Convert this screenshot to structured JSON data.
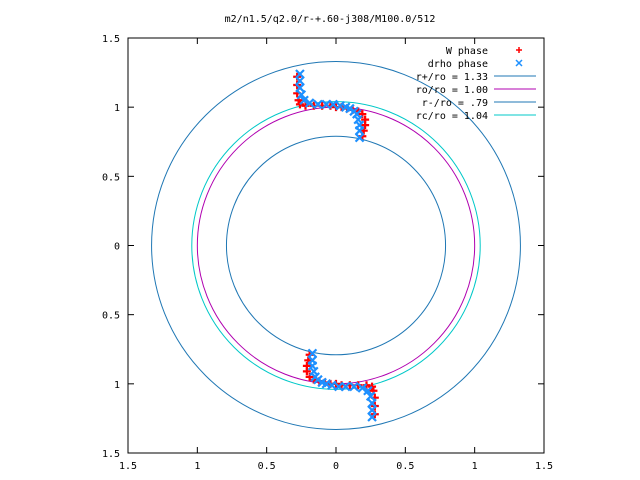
{
  "chart_data": {
    "type": "scatter",
    "title": "m2/n1.5/q2.0/r-+.60-j308/M100.0/512",
    "xlabel": "",
    "ylabel": "",
    "xlim": [
      -1.5,
      1.5
    ],
    "ylim": [
      -1.5,
      1.5
    ],
    "x_ticks": [
      -1.5,
      -1,
      -0.5,
      0,
      0.5,
      1,
      1.5
    ],
    "y_ticks": [
      -1.5,
      -1,
      -0.5,
      0,
      0.5,
      1,
      1.5
    ],
    "x_tick_labels": [
      "1.5",
      "1",
      "0.5",
      "0",
      "0.5",
      "1",
      "1.5"
    ],
    "y_tick_labels": [
      "1.5",
      "1",
      "0.5",
      "0",
      "0.5",
      "1",
      "1.5"
    ],
    "grid": false,
    "legend_position": "top-right",
    "circles": [
      {
        "label": "r+/ro = 1.33",
        "radius": 1.33,
        "color": "#1f77b4"
      },
      {
        "label": "ro/ro = 1.00",
        "radius": 1.0,
        "color": "#b000b0"
      },
      {
        "label": "r-/ro = .79",
        "radius": 0.79,
        "color": "#1f77b4"
      },
      {
        "label": "rc/ro = 1.04",
        "radius": 1.04,
        "color": "#00c8c8"
      }
    ],
    "series": [
      {
        "name": "W phase",
        "marker": "+",
        "color": "#ff0000",
        "points": [
          [
            -0.28,
            1.22
          ],
          [
            -0.28,
            1.16
          ],
          [
            -0.28,
            1.1
          ],
          [
            -0.27,
            1.05
          ],
          [
            -0.26,
            1.02
          ],
          [
            -0.22,
            1.01
          ],
          [
            -0.16,
            1.01
          ],
          [
            -0.1,
            1.01
          ],
          [
            -0.04,
            1.01
          ],
          [
            0.0,
            1.0
          ],
          [
            0.04,
            1.0
          ],
          [
            0.08,
            0.99
          ],
          [
            0.12,
            0.98
          ],
          [
            0.16,
            0.97
          ],
          [
            0.19,
            0.95
          ],
          [
            0.21,
            0.91
          ],
          [
            0.21,
            0.87
          ],
          [
            0.2,
            0.83
          ],
          [
            0.19,
            0.79
          ],
          [
            -0.19,
            -0.79
          ],
          [
            -0.2,
            -0.83
          ],
          [
            -0.21,
            -0.87
          ],
          [
            -0.21,
            -0.91
          ],
          [
            -0.19,
            -0.95
          ],
          [
            -0.16,
            -0.97
          ],
          [
            -0.12,
            -0.98
          ],
          [
            -0.08,
            -0.99
          ],
          [
            -0.04,
            -1.0
          ],
          [
            0.0,
            -1.0
          ],
          [
            0.04,
            -1.01
          ],
          [
            0.1,
            -1.01
          ],
          [
            0.16,
            -1.01
          ],
          [
            0.22,
            -1.01
          ],
          [
            0.26,
            -1.02
          ],
          [
            0.27,
            -1.05
          ],
          [
            0.28,
            -1.1
          ],
          [
            0.28,
            -1.16
          ],
          [
            0.28,
            -1.22
          ]
        ]
      },
      {
        "name": "drho phase",
        "marker": "x",
        "color": "#1e90ff",
        "points": [
          [
            -0.26,
            1.24
          ],
          [
            -0.26,
            1.19
          ],
          [
            -0.26,
            1.14
          ],
          [
            -0.25,
            1.09
          ],
          [
            -0.23,
            1.05
          ],
          [
            -0.19,
            1.03
          ],
          [
            -0.13,
            1.02
          ],
          [
            -0.07,
            1.02
          ],
          [
            -0.02,
            1.02
          ],
          [
            0.03,
            1.01
          ],
          [
            0.07,
            1.0
          ],
          [
            0.1,
            0.99
          ],
          [
            0.13,
            0.97
          ],
          [
            0.15,
            0.95
          ],
          [
            0.16,
            0.91
          ],
          [
            0.17,
            0.87
          ],
          [
            0.17,
            0.83
          ],
          [
            0.17,
            0.78
          ],
          [
            -0.17,
            -0.78
          ],
          [
            -0.17,
            -0.83
          ],
          [
            -0.17,
            -0.87
          ],
          [
            -0.16,
            -0.91
          ],
          [
            -0.15,
            -0.95
          ],
          [
            -0.13,
            -0.97
          ],
          [
            -0.1,
            -0.99
          ],
          [
            -0.07,
            -1.0
          ],
          [
            -0.03,
            -1.01
          ],
          [
            0.02,
            -1.02
          ],
          [
            0.07,
            -1.02
          ],
          [
            0.13,
            -1.02
          ],
          [
            0.19,
            -1.03
          ],
          [
            0.23,
            -1.05
          ],
          [
            0.25,
            -1.09
          ],
          [
            0.26,
            -1.14
          ],
          [
            0.26,
            -1.19
          ],
          [
            0.26,
            -1.24
          ]
        ]
      }
    ]
  }
}
